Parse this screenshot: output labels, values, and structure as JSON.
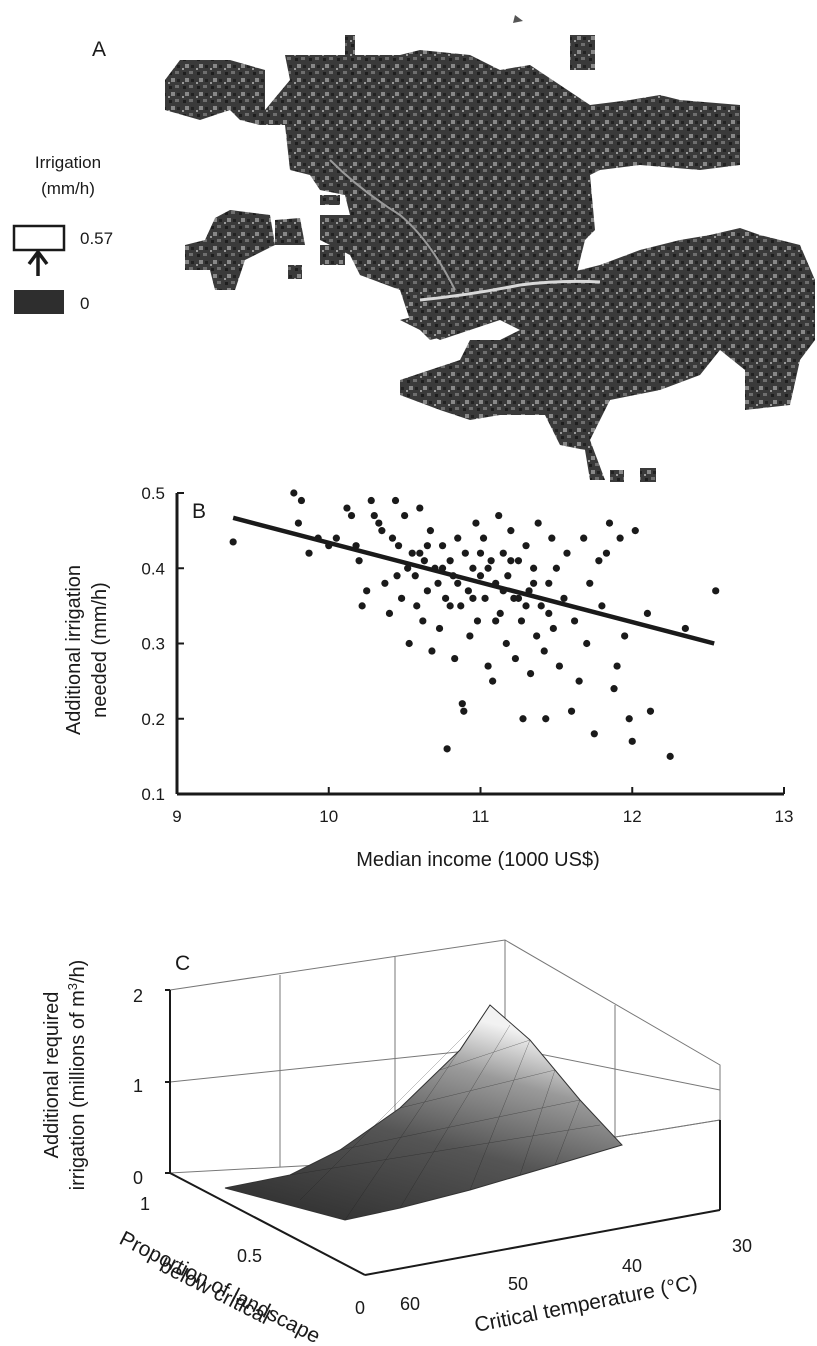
{
  "panelA": {
    "letter": "A",
    "legend": {
      "title_line1": "Irrigation",
      "title_line2": "(mm/h)",
      "high_value": "0.57",
      "low_value": "0"
    }
  },
  "chart_data": [
    {
      "type": "scatter",
      "panel": "B",
      "xlabel": "Median income (1000 US$)",
      "ylabel_line1": "Additional irrigation",
      "ylabel_line2": "needed (mm/h)",
      "xlim": [
        9,
        13
      ],
      "ylim": [
        0.1,
        0.5
      ],
      "xticks": [
        "9",
        "10",
        "11",
        "12",
        "13"
      ],
      "yticks": [
        "0.1",
        "0.2",
        "0.3",
        "0.4",
        "0.5"
      ],
      "trend_line": {
        "x": [
          9.37,
          12.54
        ],
        "y": [
          0.467,
          0.3
        ]
      },
      "points": [
        [
          9.37,
          0.435
        ],
        [
          9.77,
          0.5
        ],
        [
          9.8,
          0.46
        ],
        [
          9.82,
          0.49
        ],
        [
          9.87,
          0.42
        ],
        [
          9.93,
          0.44
        ],
        [
          10.0,
          0.43
        ],
        [
          10.05,
          0.44
        ],
        [
          10.12,
          0.48
        ],
        [
          10.15,
          0.47
        ],
        [
          10.18,
          0.43
        ],
        [
          10.2,
          0.41
        ],
        [
          10.22,
          0.35
        ],
        [
          10.25,
          0.37
        ],
        [
          10.28,
          0.49
        ],
        [
          10.3,
          0.47
        ],
        [
          10.33,
          0.46
        ],
        [
          10.35,
          0.45
        ],
        [
          10.37,
          0.38
        ],
        [
          10.4,
          0.34
        ],
        [
          10.42,
          0.44
        ],
        [
          10.44,
          0.49
        ],
        [
          10.46,
          0.43
        ],
        [
          10.48,
          0.36
        ],
        [
          10.5,
          0.47
        ],
        [
          10.52,
          0.4
        ],
        [
          10.53,
          0.3
        ],
        [
          10.55,
          0.42
        ],
        [
          10.57,
          0.39
        ],
        [
          10.58,
          0.35
        ],
        [
          10.6,
          0.48
        ],
        [
          10.62,
          0.33
        ],
        [
          10.63,
          0.41
        ],
        [
          10.65,
          0.37
        ],
        [
          10.67,
          0.45
        ],
        [
          10.68,
          0.29
        ],
        [
          10.7,
          0.4
        ],
        [
          10.72,
          0.38
        ],
        [
          10.73,
          0.32
        ],
        [
          10.75,
          0.43
        ],
        [
          10.77,
          0.36
        ],
        [
          10.78,
          0.16
        ],
        [
          10.8,
          0.41
        ],
        [
          10.82,
          0.39
        ],
        [
          10.83,
          0.28
        ],
        [
          10.85,
          0.44
        ],
        [
          10.87,
          0.35
        ],
        [
          10.88,
          0.22
        ],
        [
          10.89,
          0.21
        ],
        [
          10.9,
          0.42
        ],
        [
          10.92,
          0.37
        ],
        [
          10.93,
          0.31
        ],
        [
          10.95,
          0.4
        ],
        [
          10.97,
          0.46
        ],
        [
          10.98,
          0.33
        ],
        [
          11.0,
          0.39
        ],
        [
          11.02,
          0.44
        ],
        [
          11.03,
          0.36
        ],
        [
          11.05,
          0.27
        ],
        [
          11.07,
          0.41
        ],
        [
          11.08,
          0.25
        ],
        [
          11.1,
          0.38
        ],
        [
          11.12,
          0.47
        ],
        [
          11.13,
          0.34
        ],
        [
          11.15,
          0.42
        ],
        [
          11.17,
          0.3
        ],
        [
          11.18,
          0.39
        ],
        [
          11.2,
          0.45
        ],
        [
          11.22,
          0.36
        ],
        [
          11.23,
          0.28
        ],
        [
          11.25,
          0.41
        ],
        [
          11.27,
          0.33
        ],
        [
          11.28,
          0.2
        ],
        [
          11.3,
          0.43
        ],
        [
          11.32,
          0.37
        ],
        [
          11.33,
          0.26
        ],
        [
          11.35,
          0.4
        ],
        [
          11.37,
          0.31
        ],
        [
          11.38,
          0.46
        ],
        [
          11.4,
          0.35
        ],
        [
          11.42,
          0.29
        ],
        [
          11.43,
          0.2
        ],
        [
          11.45,
          0.38
        ],
        [
          11.47,
          0.44
        ],
        [
          11.48,
          0.32
        ],
        [
          11.5,
          0.4
        ],
        [
          11.52,
          0.27
        ],
        [
          11.55,
          0.36
        ],
        [
          11.57,
          0.42
        ],
        [
          11.6,
          0.21
        ],
        [
          11.62,
          0.33
        ],
        [
          11.65,
          0.25
        ],
        [
          11.68,
          0.44
        ],
        [
          11.7,
          0.3
        ],
        [
          11.72,
          0.38
        ],
        [
          11.75,
          0.18
        ],
        [
          11.78,
          0.41
        ],
        [
          11.8,
          0.35
        ],
        [
          11.83,
          0.42
        ],
        [
          11.85,
          0.46
        ],
        [
          11.88,
          0.24
        ],
        [
          11.9,
          0.27
        ],
        [
          11.92,
          0.44
        ],
        [
          11.95,
          0.31
        ],
        [
          11.98,
          0.2
        ],
        [
          12.0,
          0.17
        ],
        [
          12.02,
          0.45
        ],
        [
          12.1,
          0.34
        ],
        [
          12.12,
          0.21
        ],
        [
          12.25,
          0.15
        ],
        [
          12.35,
          0.32
        ],
        [
          12.55,
          0.37
        ],
        [
          10.45,
          0.39
        ],
        [
          10.6,
          0.42
        ],
        [
          10.75,
          0.4
        ],
        [
          10.85,
          0.38
        ],
        [
          10.95,
          0.36
        ],
        [
          11.05,
          0.4
        ],
        [
          11.15,
          0.37
        ],
        [
          11.25,
          0.36
        ],
        [
          11.35,
          0.38
        ],
        [
          11.45,
          0.34
        ],
        [
          10.65,
          0.43
        ],
        [
          10.8,
          0.35
        ],
        [
          11.0,
          0.42
        ],
        [
          11.1,
          0.33
        ],
        [
          11.2,
          0.41
        ],
        [
          11.3,
          0.35
        ]
      ]
    },
    {
      "type": "surface",
      "panel": "C",
      "xlabel": "Critical temperature (°C)",
      "ylabel_line1": "Proportion of landscape",
      "ylabel_line2": "below critical",
      "zlabel_line1": "Additional required",
      "zlabel_line2_prefix": "irrigation (millions of m",
      "zlabel_line2_sup": "3",
      "zlabel_line2_suffix": "/h)",
      "xlim": [
        30,
        60
      ],
      "ylim": [
        0,
        1
      ],
      "zlim": [
        0,
        2
      ],
      "xticks": [
        "30",
        "40",
        "50",
        "60"
      ],
      "yticks": [
        "0",
        "0.5",
        "1"
      ],
      "zticks": [
        "0",
        "1",
        "2"
      ],
      "surface_peak": {
        "temperature": 30,
        "proportion": 1,
        "value": 1.35
      },
      "surface_at_60C": 0
    }
  ]
}
